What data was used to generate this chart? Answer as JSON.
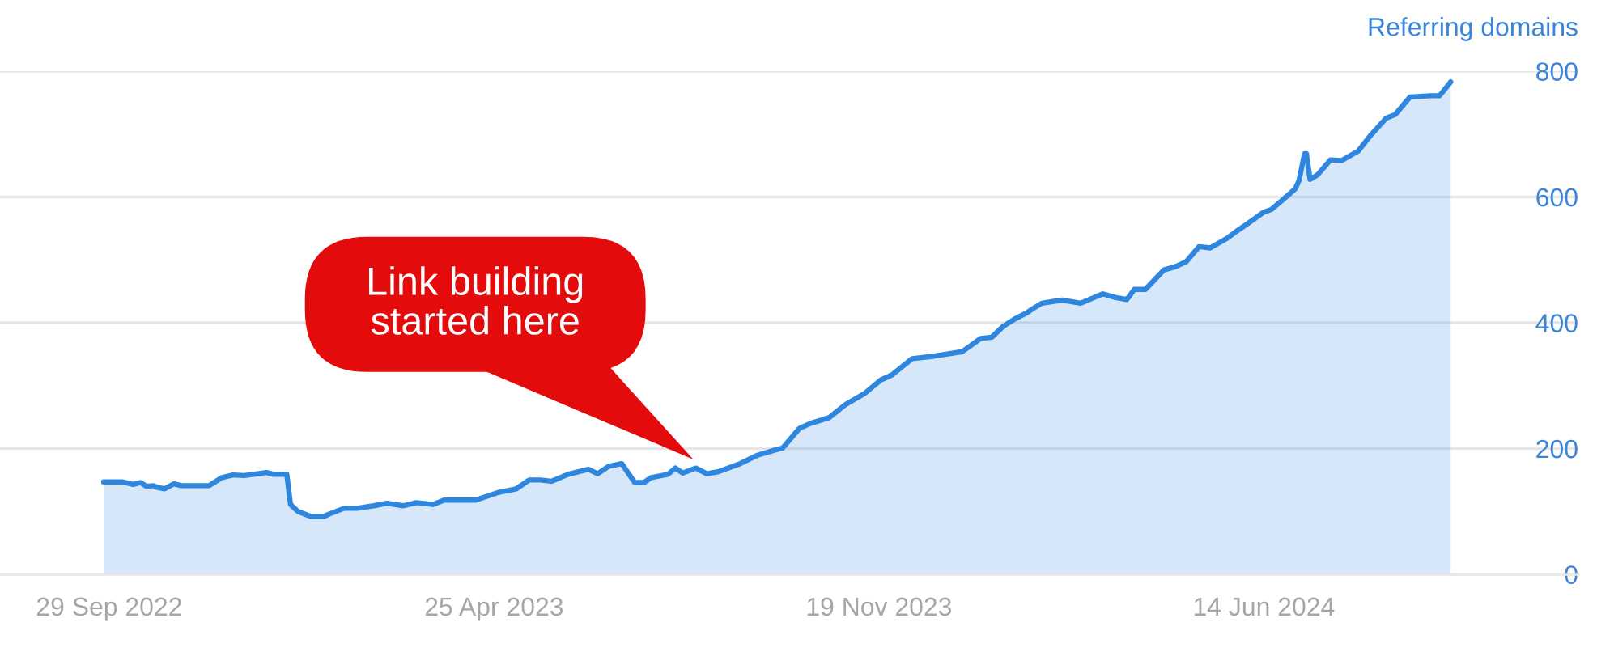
{
  "chart_data": {
    "type": "area",
    "ylabel": "Referring domains",
    "x": [
      "2022-09-26",
      "2022-10-06",
      "2022-10-12",
      "2022-10-16",
      "2022-10-19",
      "2022-10-23",
      "2022-10-25",
      "2022-10-29",
      "2022-11-03",
      "2022-11-07",
      "2022-11-22",
      "2022-11-29",
      "2022-12-05",
      "2022-12-11",
      "2022-12-16",
      "2022-12-23",
      "2022-12-27",
      "2023-01-03",
      "2023-01-05",
      "2023-01-09",
      "2023-01-16",
      "2023-01-23",
      "2023-01-26",
      "2023-02-03",
      "2023-02-10",
      "2023-02-19",
      "2023-02-26",
      "2023-03-07",
      "2023-03-14",
      "2023-03-23",
      "2023-03-29",
      "2023-04-09",
      "2023-04-15",
      "2023-04-27",
      "2023-05-07",
      "2023-05-14",
      "2023-05-20",
      "2023-05-26",
      "2023-06-04",
      "2023-06-15",
      "2023-06-20",
      "2023-06-26",
      "2023-07-03",
      "2023-07-10",
      "2023-07-15",
      "2023-07-19",
      "2023-07-28",
      "2023-08-01",
      "2023-08-05",
      "2023-08-12",
      "2023-08-18",
      "2023-08-24",
      "2023-09-05",
      "2023-09-14",
      "2023-09-23",
      "2023-09-28",
      "2023-10-07",
      "2023-10-13",
      "2023-10-23",
      "2023-11-01",
      "2023-11-11",
      "2023-11-20",
      "2023-11-26",
      "2023-12-07",
      "2023-12-19",
      "2024-01-03",
      "2024-01-13",
      "2024-01-19",
      "2024-01-25",
      "2024-02-01",
      "2024-02-07",
      "2024-02-10",
      "2024-02-15",
      "2024-02-26",
      "2024-03-07",
      "2024-03-19",
      "2024-03-26",
      "2024-04-01",
      "2024-04-05",
      "2024-04-11",
      "2024-04-21",
      "2024-04-27",
      "2024-05-03",
      "2024-05-10",
      "2024-05-16",
      "2024-05-25",
      "2024-05-30",
      "2024-06-05",
      "2024-06-14",
      "2024-06-18",
      "2024-06-26",
      "2024-07-01",
      "2024-07-03",
      "2024-07-06",
      "2024-07-07",
      "2024-07-09",
      "2024-07-13",
      "2024-07-20",
      "2024-07-26",
      "2024-08-04",
      "2024-08-11",
      "2024-08-19",
      "2024-08-24",
      "2024-09-01",
      "2024-09-12",
      "2024-09-17",
      "2024-09-23"
    ],
    "series": [
      {
        "color": "#2e86de",
        "values": [
          147,
          147,
          143,
          146,
          140,
          141,
          138,
          136,
          144,
          141,
          141,
          154,
          158,
          157,
          159,
          162,
          159,
          159,
          111,
          100,
          92,
          92,
          96,
          105,
          105,
          109,
          113,
          109,
          114,
          111,
          118,
          118,
          118,
          130,
          136,
          150,
          150,
          148,
          159,
          167,
          160,
          172,
          176,
          146,
          146,
          154,
          159,
          169,
          161,
          169,
          160,
          163,
          176,
          189,
          197,
          201,
          232,
          240,
          249,
          270,
          287,
          309,
          317,
          343,
          347,
          354,
          375,
          377,
          394,
          407,
          416,
          422,
          431,
          436,
          431,
          446,
          440,
          437,
          453,
          453,
          484,
          489,
          497,
          521,
          519,
          534,
          545,
          557,
          576,
          580,
          600,
          613,
          626,
          669,
          669,
          628,
          635,
          659,
          658,
          673,
          699,
          725,
          731,
          759,
          761,
          761,
          783
        ]
      }
    ],
    "xlim": [
      "2022-08-01",
      "2024-12-01"
    ],
    "xticks": [
      {
        "value": "2022-09-29",
        "label": "29 Sep 2022"
      },
      {
        "value": "2023-04-25",
        "label": "25 Apr 2023"
      },
      {
        "value": "2023-11-19",
        "label": "19 Nov 2023"
      },
      {
        "value": "2024-06-14",
        "label": "14 Jun 2024"
      }
    ],
    "ylim": [
      0,
      800
    ],
    "yticks": [
      0,
      200,
      400,
      600,
      800
    ],
    "grid": "y",
    "annotations": [
      "Link building\nstarted here"
    ]
  }
}
